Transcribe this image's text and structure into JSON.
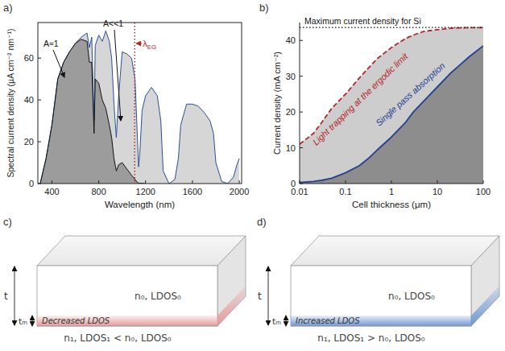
{
  "chart_data": [
    {
      "type": "area",
      "label": "a)",
      "xlabel": "Wavelength (nm)",
      "ylabel": "Spectral current density (µA cm⁻² nm⁻¹)",
      "x": [
        300,
        350,
        400,
        450,
        500,
        550,
        600,
        650,
        700,
        720,
        740,
        760,
        770,
        800,
        830,
        860,
        890,
        910,
        930,
        950,
        970,
        1000,
        1040,
        1080,
        1110,
        1130,
        1140,
        1150,
        1170,
        1200,
        1250,
        1300,
        1330,
        1350,
        1400,
        1450,
        1480,
        1500,
        1550,
        1600,
        1650,
        1700,
        1750,
        1780,
        1800,
        1850,
        1900,
        1950,
        1980,
        2000
      ],
      "series": [
        {
          "color": "#2b4e9b",
          "line_style": "solid",
          "values": [
            0,
            12,
            28,
            50,
            58,
            63,
            67,
            70,
            72,
            65,
            70,
            30,
            66,
            71,
            68,
            73,
            68,
            60,
            38,
            22,
            42,
            63,
            62,
            60,
            50,
            22,
            8,
            14,
            35,
            42,
            46,
            42,
            30,
            6,
            0,
            2,
            12,
            28,
            38,
            38,
            37,
            34,
            30,
            24,
            10,
            1,
            0,
            3,
            9,
            12
          ]
        },
        {
          "color": "#111111",
          "line_style": "solid",
          "values": [
            0,
            12,
            28,
            50,
            58,
            63,
            67,
            69,
            68,
            58,
            58,
            24,
            50,
            48,
            40,
            36,
            28,
            22,
            12,
            6,
            9,
            10,
            7,
            4,
            2,
            0.5,
            0.2,
            0.2,
            0.1,
            0,
            null,
            null,
            null,
            null,
            null,
            null,
            null,
            null,
            null,
            null,
            null,
            null,
            null,
            null,
            null,
            null,
            null,
            null,
            null,
            null
          ]
        }
      ],
      "xlim": [
        280,
        2020
      ],
      "ylim": [
        0,
        77
      ],
      "xticks": [
        400,
        800,
        1200,
        1600,
        2000
      ],
      "yticks": [
        0,
        20,
        40,
        60
      ],
      "annotations": [
        {
          "text": "A≈1"
        },
        {
          "text": "A<<1"
        }
      ],
      "reference_line": {
        "axis": "x",
        "value": 1107,
        "text": "λ",
        "subscript": "EG",
        "color": "#b3262b"
      }
    },
    {
      "type": "area",
      "label": "b)",
      "xlabel": "Cell thickness (μm)",
      "ylabel": "Current density (mA cm⁻²)",
      "log": "x",
      "x": [
        0.01,
        0.02,
        0.03,
        0.05,
        0.1,
        0.2,
        0.3,
        0.5,
        1,
        2,
        3,
        5,
        10,
        20,
        30,
        50,
        100
      ],
      "series": [
        {
          "name": "Light trapping at the ergodic limit",
          "color": "#b3262b",
          "line_style": "dashed",
          "values": [
            11,
            14,
            17,
            21,
            25,
            29.5,
            32,
            35,
            38,
            40.5,
            41.5,
            42.5,
            43,
            43.4,
            43.5,
            43.55,
            43.6
          ]
        },
        {
          "name": "Single pass absorption",
          "color": "#24408e",
          "line_style": "solid",
          "values": [
            0.3,
            0.6,
            0.9,
            1.5,
            3,
            5,
            6.8,
            9.5,
            13,
            17,
            20,
            23,
            27,
            31,
            33,
            35.5,
            38.5
          ]
        }
      ],
      "xlim": [
        0.01,
        100
      ],
      "ylim": [
        0,
        45
      ],
      "xticks": [
        0.01,
        0.1,
        1,
        10,
        100
      ],
      "yticks": [
        0,
        10,
        20,
        30,
        40
      ],
      "reference_line": {
        "axis": "y",
        "value": 43.6,
        "text": "Maximum current density for Si",
        "color": "#111111"
      }
    }
  ],
  "diagrams": [
    {
      "label": "c)",
      "bulk": "n₀, LDOS₀",
      "layer": "Decreased LDOS",
      "substrate": "n₁, LDOS₁ < n₀, LDOS₀",
      "thickness": "t",
      "layer_thickness": "tₘ",
      "color": "#e59a9a"
    },
    {
      "label": "d)",
      "bulk": "n₀, LDOS₀",
      "layer": "Increased LDOS",
      "substrate": "n₁, LDOS₁ > n₀, LDOS₀",
      "thickness": "t",
      "layer_thickness": "tₘ",
      "color": "#6f97d2"
    }
  ]
}
